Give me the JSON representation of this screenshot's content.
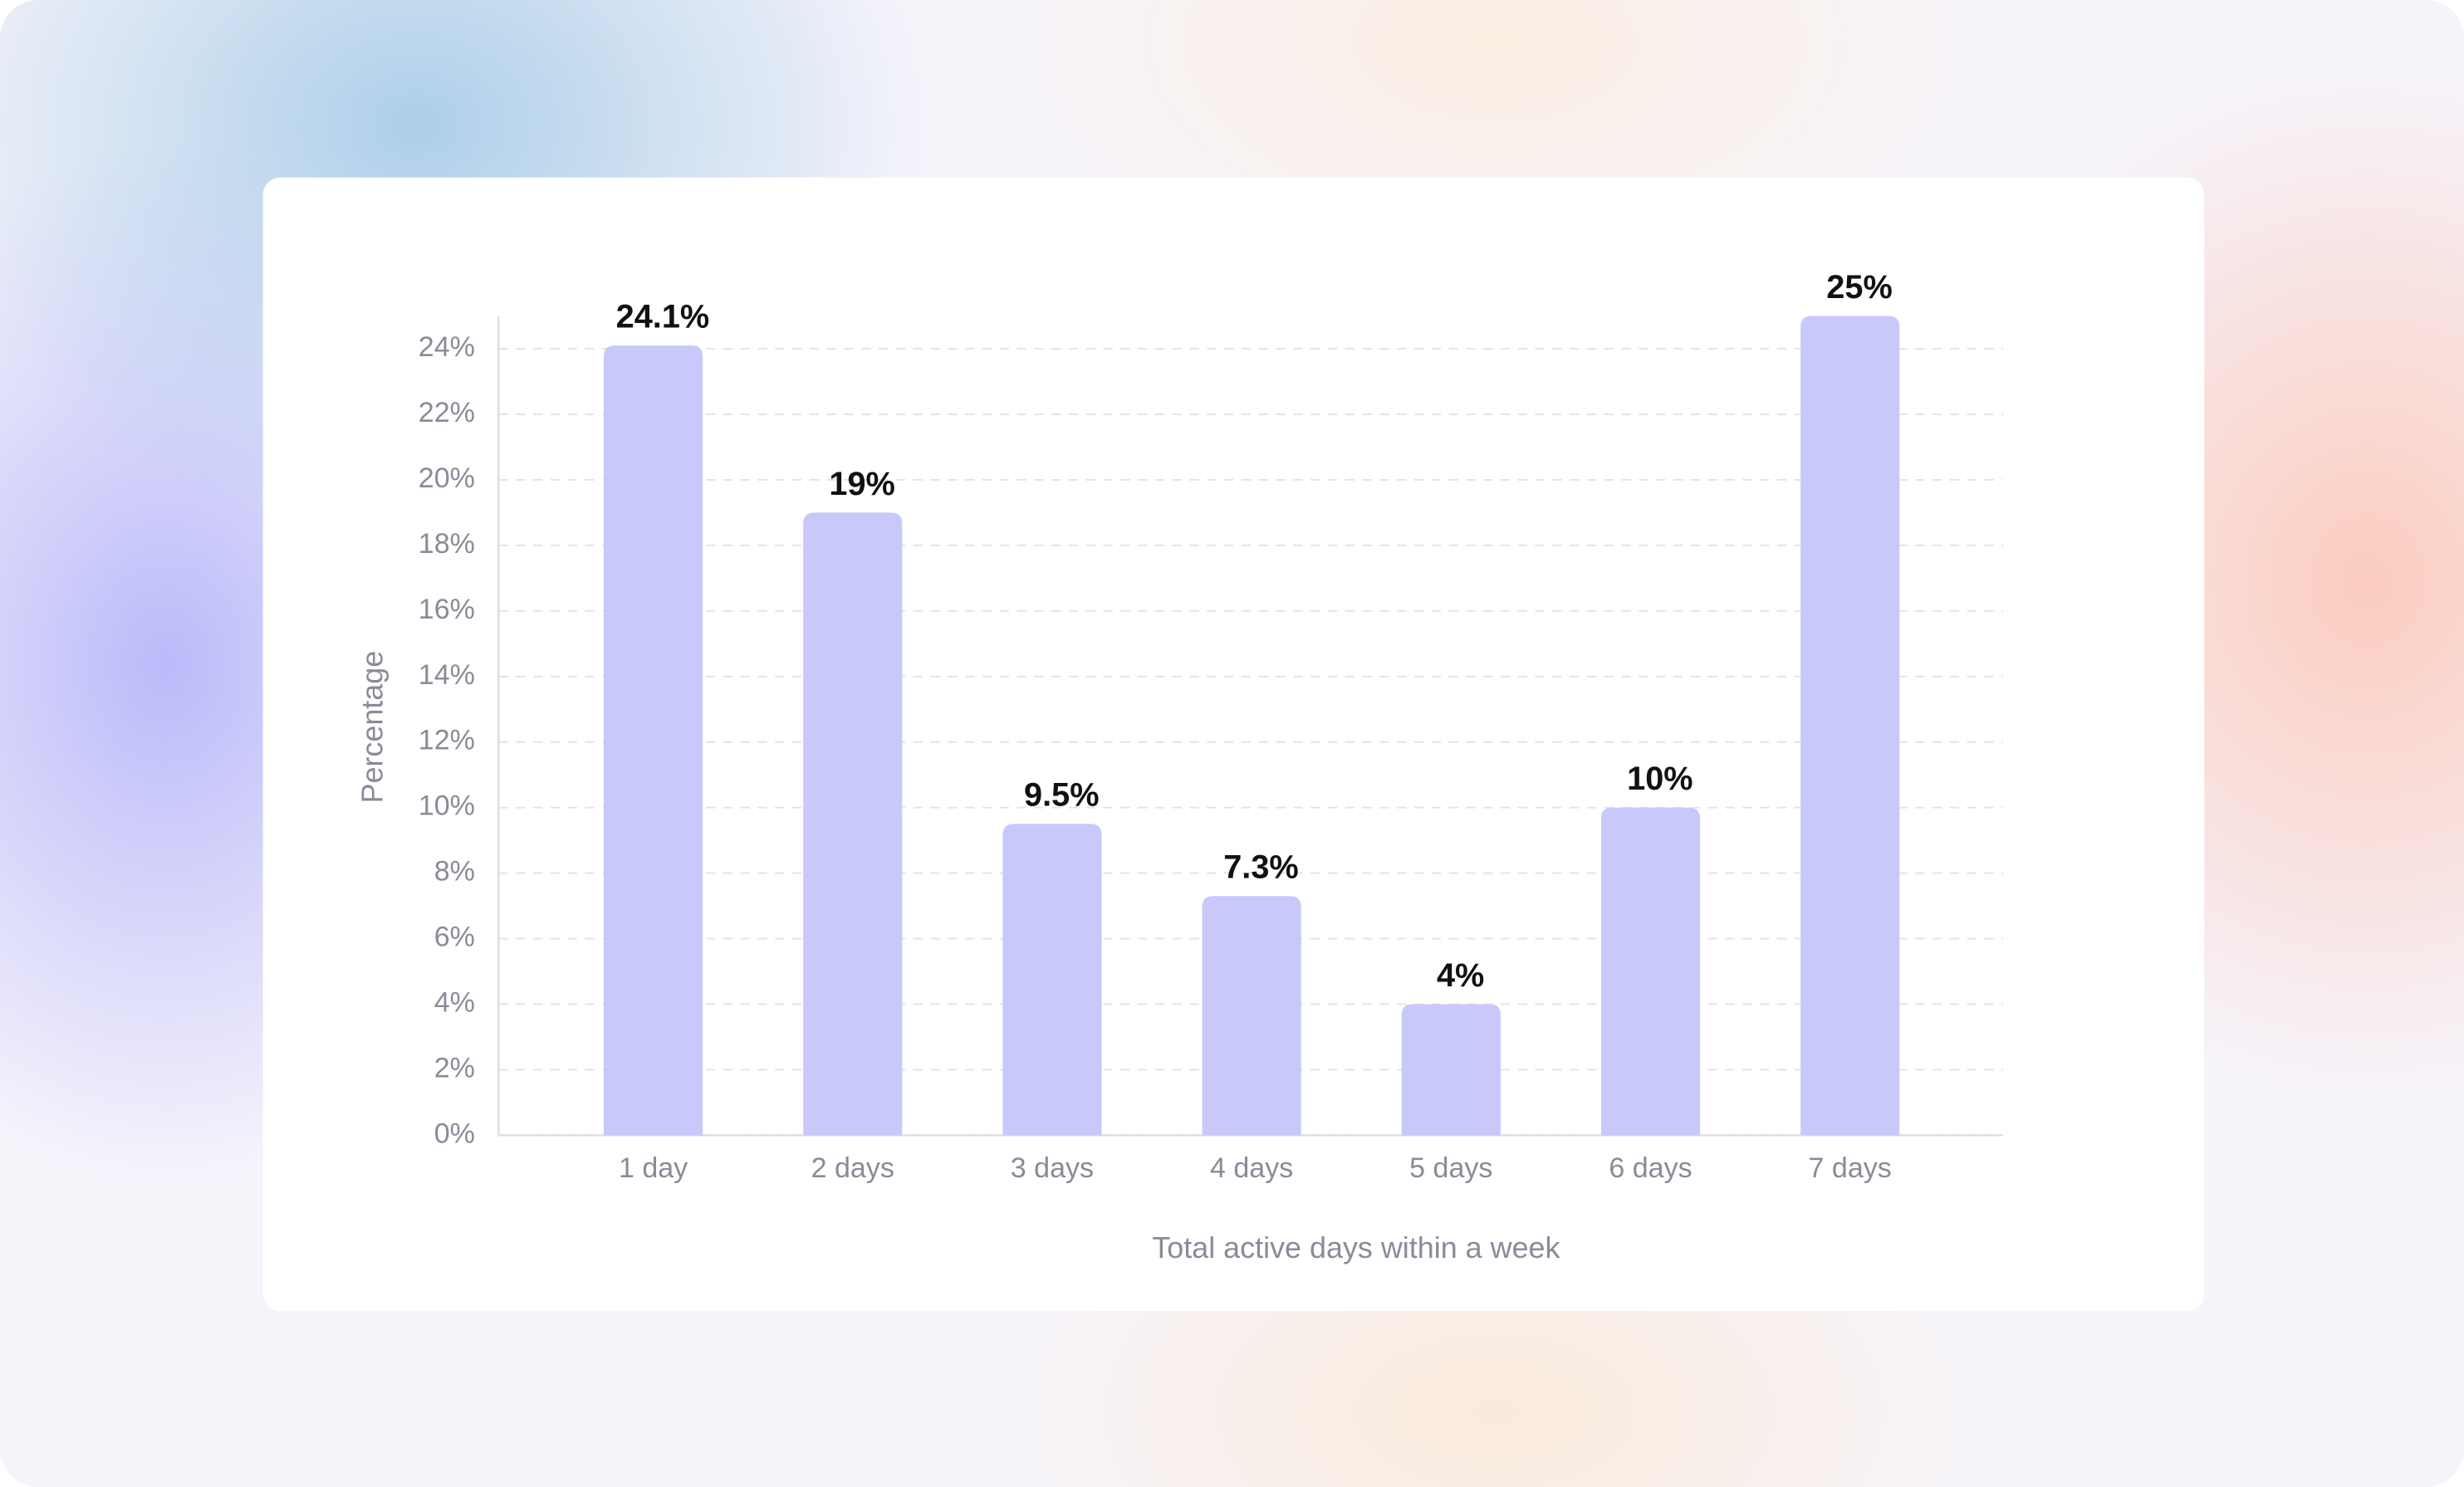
{
  "chart_data": {
    "type": "bar",
    "x_label": "Total active days within a week",
    "y_label": "Percentage",
    "categories": [
      "1 day",
      "2 days",
      "3 days",
      "4 days",
      "5 days",
      "6 days",
      "7 days"
    ],
    "values": [
      24.1,
      19,
      9.5,
      7.3,
      4,
      10,
      25
    ],
    "value_labels": [
      "24.1%",
      "19%",
      "9.5%",
      "7.3%",
      "4%",
      "10%",
      "25%"
    ],
    "color": "#c9c8fa",
    "ylim": [
      0,
      25
    ],
    "yticks": [
      {
        "value": 0,
        "label": "0%"
      },
      {
        "value": 2,
        "label": "2%"
      },
      {
        "value": 4,
        "label": "4%"
      },
      {
        "value": 6,
        "label": "6%"
      },
      {
        "value": 8,
        "label": "8%"
      },
      {
        "value": 10,
        "label": "10%"
      },
      {
        "value": 12,
        "label": "12%"
      },
      {
        "value": 14,
        "label": "14%"
      },
      {
        "value": 16,
        "label": "16%"
      },
      {
        "value": 18,
        "label": "18%"
      },
      {
        "value": 20,
        "label": "20%"
      },
      {
        "value": 22,
        "label": "22%"
      },
      {
        "value": 24,
        "label": "24%"
      }
    ],
    "grid": true
  }
}
